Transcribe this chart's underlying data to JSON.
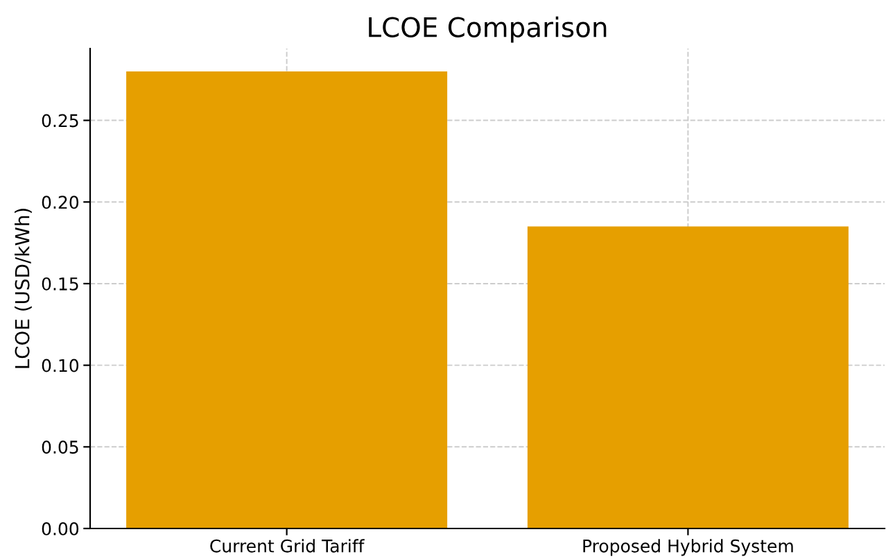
{
  "chart_data": {
    "type": "bar",
    "title": "LCOE Comparison",
    "ylabel": "LCOE (USD/kWh)",
    "categories": [
      "Current Grid Tariff",
      "Proposed Hybrid System"
    ],
    "values": [
      0.28,
      0.185
    ],
    "color": "#e69f00",
    "ylim": [
      0,
      0.294
    ],
    "yticks": [
      {
        "value": 0,
        "label": "0.00"
      },
      {
        "value": 0.05,
        "label": "0.05"
      },
      {
        "value": 0.1,
        "label": "0.10"
      },
      {
        "value": 0.15,
        "label": "0.15"
      },
      {
        "value": 0.2,
        "label": "0.20"
      },
      {
        "value": 0.25,
        "label": "0.25"
      }
    ],
    "grid": true
  }
}
